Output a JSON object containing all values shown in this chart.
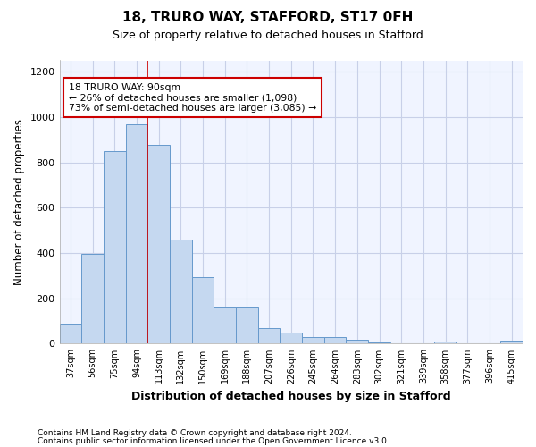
{
  "title1": "18, TRURO WAY, STAFFORD, ST17 0FH",
  "title2": "Size of property relative to detached houses in Stafford",
  "xlabel": "Distribution of detached houses by size in Stafford",
  "ylabel": "Number of detached properties",
  "categories": [
    "37sqm",
    "56sqm",
    "75sqm",
    "94sqm",
    "113sqm",
    "132sqm",
    "150sqm",
    "169sqm",
    "188sqm",
    "207sqm",
    "226sqm",
    "245sqm",
    "264sqm",
    "283sqm",
    "302sqm",
    "321sqm",
    "339sqm",
    "358sqm",
    "377sqm",
    "396sqm",
    "415sqm"
  ],
  "values": [
    90,
    398,
    848,
    968,
    878,
    458,
    292,
    163,
    163,
    68,
    50,
    30,
    28,
    18,
    5,
    0,
    0,
    10,
    0,
    0,
    12
  ],
  "bar_color": "#c5d8f0",
  "bar_edge_color": "#6699cc",
  "vline_color": "#cc0000",
  "annotation_text": "18 TRURO WAY: 90sqm\n← 26% of detached houses are smaller (1,098)\n73% of semi-detached houses are larger (3,085) →",
  "annotation_box_color": "#ffffff",
  "annotation_box_edge_color": "#cc0000",
  "ylim": [
    0,
    1250
  ],
  "yticks": [
    0,
    200,
    400,
    600,
    800,
    1000,
    1200
  ],
  "footnote1": "Contains HM Land Registry data © Crown copyright and database right 2024.",
  "footnote2": "Contains public sector information licensed under the Open Government Licence v3.0.",
  "bg_color": "#ffffff",
  "plot_bg_color": "#f0f4ff",
  "grid_color": "#c8d0e8"
}
